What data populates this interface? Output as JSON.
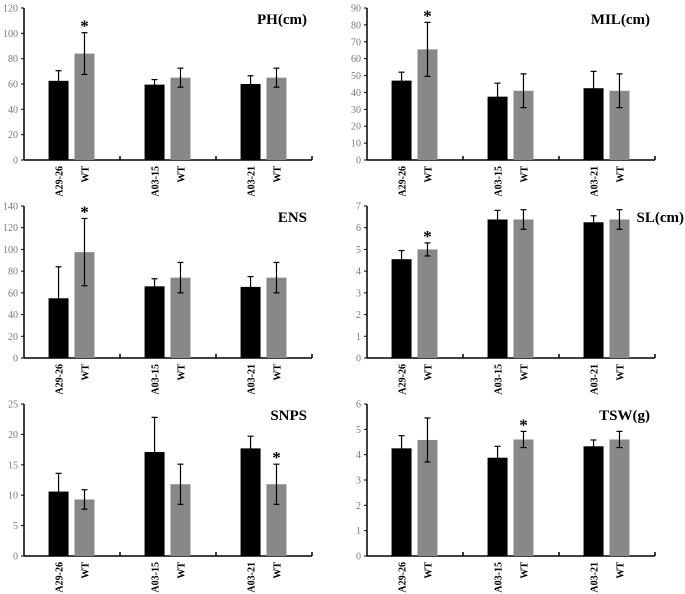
{
  "colors": {
    "line": "#000000",
    "wt": "#888888",
    "axis": "#000000"
  },
  "chart_data": [
    {
      "type": "bar",
      "title": "PH(cm)",
      "categories": [
        "A29-26",
        "WT",
        "A03-15",
        "WT",
        "A03-21",
        "WT"
      ],
      "values": [
        62.5,
        84,
        59.5,
        65,
        60,
        65
      ],
      "errors": [
        8,
        16.5,
        4,
        7.5,
        6.5,
        7.5
      ],
      "significant": [
        false,
        true,
        false,
        false,
        false,
        false
      ],
      "ylim": [
        0,
        120
      ],
      "ytick_step": 20,
      "grid": false,
      "star_label": "*"
    },
    {
      "type": "bar",
      "title": "MIL(cm)",
      "categories": [
        "A29-26",
        "WT",
        "A03-15",
        "WT",
        "A03-21",
        "WT"
      ],
      "values": [
        47,
        65.5,
        37.5,
        41,
        42.5,
        41
      ],
      "errors": [
        5,
        16,
        8,
        10,
        10,
        10
      ],
      "significant": [
        false,
        true,
        false,
        false,
        false,
        false
      ],
      "ylim": [
        0,
        90
      ],
      "ytick_step": 10,
      "grid": false,
      "star_label": "*"
    },
    {
      "type": "bar",
      "title": "ENS",
      "categories": [
        "A29-26",
        "WT",
        "A03-15",
        "WT",
        "A03-21",
        "WT"
      ],
      "values": [
        55,
        97.5,
        66,
        74,
        65.5,
        74
      ],
      "errors": [
        29,
        31,
        7,
        14,
        9.5,
        14
      ],
      "significant": [
        false,
        true,
        false,
        false,
        false,
        false
      ],
      "ylim": [
        0,
        140
      ],
      "ytick_step": 20,
      "grid": false,
      "star_label": "*"
    },
    {
      "type": "bar",
      "title": "SL(cm)",
      "categories": [
        "A29-26",
        "WT",
        "A03-15",
        "WT",
        "A03-21",
        "WT"
      ],
      "values": [
        4.55,
        5.0,
        6.38,
        6.38,
        6.25,
        6.38
      ],
      "errors": [
        0.4,
        0.3,
        0.42,
        0.45,
        0.3,
        0.45
      ],
      "significant": [
        false,
        true,
        false,
        false,
        false,
        false
      ],
      "ylim": [
        0,
        7
      ],
      "ytick_step": 1,
      "grid": false,
      "star_label": "*"
    },
    {
      "type": "bar",
      "title": "SNPS",
      "categories": [
        "A29-26",
        "WT",
        "A03-15",
        "WT",
        "A03-21",
        "WT"
      ],
      "values": [
        10.6,
        9.3,
        17.1,
        11.8,
        17.7,
        11.8
      ],
      "errors": [
        3,
        1.6,
        5.7,
        3.3,
        2,
        3.3
      ],
      "significant": [
        false,
        false,
        false,
        false,
        false,
        true
      ],
      "ylim": [
        0,
        25
      ],
      "ytick_step": 5,
      "grid": false,
      "star_label": "*"
    },
    {
      "type": "bar",
      "title": "TSW(g)",
      "categories": [
        "A29-26",
        "WT",
        "A03-15",
        "WT",
        "A03-21",
        "WT"
      ],
      "values": [
        4.25,
        4.58,
        3.88,
        4.6,
        4.33,
        4.6
      ],
      "errors": [
        0.5,
        0.87,
        0.45,
        0.32,
        0.25,
        0.32
      ],
      "significant": [
        false,
        false,
        false,
        true,
        false,
        false
      ],
      "ylim": [
        0,
        6
      ],
      "ytick_step": 1,
      "grid": false,
      "star_label": "*"
    }
  ]
}
